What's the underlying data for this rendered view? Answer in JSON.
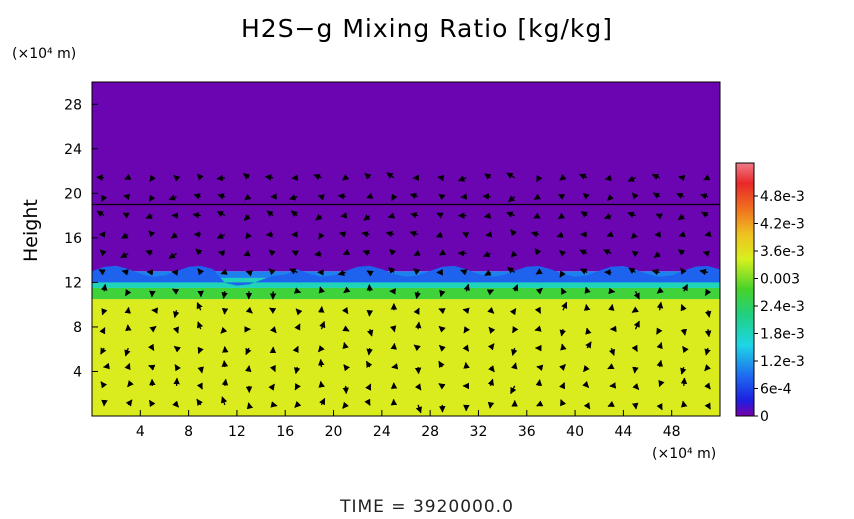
{
  "chart_data": {
    "type": "heatmap",
    "title": "H2S−g Mixing Ratio [kg/kg]",
    "ylabel": "Height",
    "x_unit": "(×10⁴ m)",
    "y_unit": "(×10⁴ m)",
    "xlim": [
      0,
      52
    ],
    "ylim": [
      0,
      30
    ],
    "x_ticks": [
      "4",
      "8",
      "12",
      "16",
      "20",
      "24",
      "28",
      "32",
      "36",
      "40",
      "44",
      "48"
    ],
    "y_ticks": [
      "4",
      "8",
      "12",
      "16",
      "20",
      "24",
      "28"
    ],
    "colorbar_labels": [
      "0",
      "6e-4",
      "1.2e-3",
      "1.8e-3",
      "2.4e-3",
      "0.003",
      "3.6e-3",
      "4.2e-3",
      "4.8e-3"
    ],
    "colorbar_range": [
      0,
      0.0054
    ],
    "layers": [
      {
        "from": 0,
        "to": 10.5,
        "value": 0.0034
      },
      {
        "from": 10.5,
        "to": 11.5,
        "value": 0.0026
      },
      {
        "from": 11.5,
        "to": 12.4,
        "value": 0.0018
      },
      {
        "from": 12.4,
        "to": 13.0,
        "value": 0.001
      },
      {
        "from": 13.0,
        "to": 30,
        "value": 5e-05
      }
    ],
    "wind_vectors": "velocity arrows overlaid across the domain",
    "colors": {
      "purple": "#7a00a8",
      "yellow": "#d8f01e",
      "green": "#3fd23a",
      "cyan": "#22d7d2",
      "blue": "#1c3cd8"
    }
  },
  "footer": {
    "time_text": "TIME = 3920000.0"
  }
}
